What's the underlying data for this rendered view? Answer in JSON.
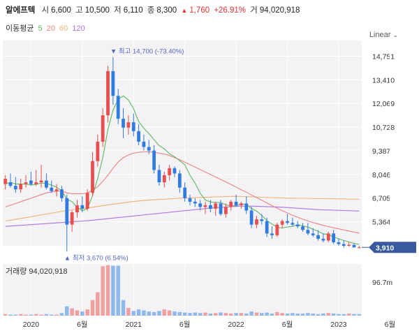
{
  "header": {
    "name": "알에프텍",
    "open_label": "시",
    "open": "6,600",
    "high_label": "고",
    "high": "10,500",
    "low_label": "저",
    "low": "6,110",
    "close_label": "종",
    "close": "8,300",
    "change_arrow": "▲",
    "change": "1,760",
    "change_pct": "+26.91%",
    "volume_label": "거",
    "volume": "94,020,918"
  },
  "ma_legend": {
    "label": "이동평균",
    "items": [
      "5",
      "20",
      "60",
      "120"
    ]
  },
  "scale_label": "Linear",
  "colors": {
    "up": "#e94d4d",
    "down": "#2f7be0",
    "ma5": "#5cb85c",
    "ma20": "#f08080",
    "ma60": "#f0b070",
    "ma120": "#b070e0",
    "vol_up": "#f0a0a0",
    "vol_down": "#8fb8ec",
    "current": "#3a5aa0"
  },
  "chart_data": [
    {
      "type": "candlestick",
      "y_ticks": [
        "14,751",
        "13,410",
        "12,069",
        "10,728",
        "9,387",
        "8,046",
        "6,705",
        "5,364"
      ],
      "ylim": [
        4000,
        15400
      ],
      "x_ticks": [
        "2020",
        "6월",
        "2021",
        "6월",
        "2022",
        "6월",
        "2023",
        "6월"
      ],
      "x_tick_positions": [
        5,
        15,
        25,
        35,
        45,
        55,
        65,
        75
      ],
      "max_annotation": "최고 14,700 (-73.40%)",
      "max_point": {
        "index": 21,
        "value": 14700
      },
      "min_annotation": "최저 3,670 (6.54%)",
      "min_point": {
        "index": 12,
        "value": 3670
      },
      "current_price": "3,910",
      "current_value": 3910,
      "ohlc": [
        [
          7500,
          8000,
          7200,
          7800
        ],
        [
          7600,
          8100,
          7300,
          7400
        ],
        [
          7400,
          7900,
          7000,
          7200
        ],
        [
          7200,
          7800,
          7000,
          7500
        ],
        [
          7500,
          8000,
          7300,
          7600
        ],
        [
          7700,
          8200,
          7400,
          7500
        ],
        [
          7500,
          8300,
          7400,
          7600
        ],
        [
          7600,
          8600,
          7300,
          7700
        ],
        [
          7700,
          8100,
          7200,
          7300
        ],
        [
          7300,
          7700,
          7000,
          7100
        ],
        [
          7100,
          7500,
          6800,
          7200
        ],
        [
          7200,
          7400,
          6500,
          6700
        ],
        [
          6700,
          6900,
          3670,
          5200
        ],
        [
          5200,
          6000,
          4800,
          5900
        ],
        [
          5900,
          6600,
          5600,
          6300
        ],
        [
          6300,
          6800,
          5900,
          6100
        ],
        [
          6100,
          7200,
          6000,
          7000
        ],
        [
          7000,
          9300,
          6800,
          8800
        ],
        [
          8800,
          10300,
          8500,
          9900
        ],
        [
          9900,
          11800,
          9600,
          11400
        ],
        [
          11400,
          14200,
          11000,
          13900
        ],
        [
          13900,
          14700,
          12000,
          12500
        ],
        [
          12500,
          12900,
          10900,
          11200
        ],
        [
          11200,
          11800,
          10100,
          10700
        ],
        [
          10700,
          11400,
          10300,
          11000
        ],
        [
          11000,
          11500,
          10200,
          10500
        ],
        [
          10500,
          10900,
          9700,
          9900
        ],
        [
          9900,
          10300,
          9400,
          9600
        ],
        [
          9600,
          10000,
          9200,
          9400
        ],
        [
          9400,
          9700,
          8100,
          8300
        ],
        [
          8300,
          8600,
          7400,
          7600
        ],
        [
          7600,
          8200,
          7300,
          8000
        ],
        [
          8000,
          8600,
          7700,
          8400
        ],
        [
          8400,
          8500,
          7900,
          8100
        ],
        [
          8100,
          8300,
          7000,
          7300
        ],
        [
          7300,
          7600,
          6500,
          6700
        ],
        [
          6700,
          6900,
          6300,
          6500
        ],
        [
          6500,
          6700,
          6200,
          6400
        ],
        [
          6400,
          6600,
          6000,
          6200
        ],
        [
          6200,
          6500,
          5800,
          6300
        ],
        [
          6300,
          6600,
          5900,
          6100
        ],
        [
          6100,
          6500,
          5700,
          6400
        ],
        [
          6400,
          6600,
          5700,
          5800
        ],
        [
          5800,
          6400,
          5600,
          6200
        ],
        [
          6200,
          6600,
          6000,
          6500
        ],
        [
          6500,
          6900,
          6200,
          6300
        ],
        [
          6300,
          6500,
          6100,
          6400
        ],
        [
          6400,
          6800,
          5800,
          6000
        ],
        [
          6000,
          6200,
          5000,
          5200
        ],
        [
          5200,
          5700,
          5000,
          5500
        ],
        [
          5500,
          5800,
          5200,
          5400
        ],
        [
          5400,
          5600,
          4500,
          4700
        ],
        [
          4700,
          5100,
          4400,
          4600
        ],
        [
          4600,
          5300,
          4500,
          5200
        ],
        [
          5200,
          5500,
          5000,
          5400
        ],
        [
          5400,
          5800,
          5200,
          5300
        ],
        [
          5300,
          5600,
          5100,
          5200
        ],
        [
          5200,
          5400,
          5000,
          5100
        ],
        [
          5100,
          5300,
          4800,
          4900
        ],
        [
          4900,
          5300,
          4600,
          4700
        ],
        [
          4700,
          5000,
          4500,
          4600
        ],
        [
          4600,
          4900,
          4300,
          4400
        ],
        [
          4400,
          4700,
          4200,
          4300
        ],
        [
          4300,
          4800,
          4200,
          4700
        ],
        [
          4700,
          4900,
          4100,
          4200
        ],
        [
          4200,
          4400,
          4000,
          4100
        ],
        [
          4100,
          4300,
          3900,
          4000
        ],
        [
          4000,
          4200,
          3950,
          4050
        ],
        [
          4050,
          4150,
          3900,
          3910
        ],
        [
          3910,
          4000,
          3850,
          3910
        ]
      ],
      "ma5": [
        7500,
        7600,
        7500,
        7500,
        7500,
        7450,
        7480,
        7560,
        7540,
        7440,
        7320,
        7120,
        6640,
        6500,
        6180,
        6000,
        6100,
        6850,
        7800,
        9000,
        10600,
        11700,
        12300,
        12500,
        12260,
        11780,
        11040,
        10660,
        10360,
        10010,
        9680,
        9500,
        9220,
        9050,
        8820,
        8600,
        8000,
        7550,
        6980,
        6600,
        6480,
        6450,
        6460,
        6320,
        6260,
        6280,
        6360,
        6360,
        6120,
        5960,
        5720,
        5430,
        5240,
        5050,
        5010,
        5070,
        5100,
        5200,
        5130,
        5060,
        4940,
        4820,
        4680,
        4640,
        4500,
        4400,
        4300,
        4220,
        4140,
        4080
      ],
      "ma20": [
        6200,
        6300,
        6400,
        6500,
        6600,
        6700,
        6800,
        6900,
        7000,
        7050,
        7100,
        7100,
        7000,
        6950,
        6950,
        6950,
        7000,
        7150,
        7350,
        7650,
        8000,
        8400,
        8750,
        9000,
        9150,
        9250,
        9300,
        9330,
        9330,
        9300,
        9250,
        9200,
        9120,
        9000,
        8880,
        8740,
        8600,
        8460,
        8320,
        8180,
        8040,
        7900,
        7760,
        7620,
        7470,
        7330,
        7180,
        7040,
        6880,
        6730,
        6580,
        6430,
        6280,
        6130,
        5990,
        5860,
        5730,
        5620,
        5510,
        5410,
        5320,
        5240,
        5160,
        5090,
        5020,
        4960,
        4900,
        4840,
        4780,
        4720
      ],
      "ma60": [
        5400,
        5450,
        5500,
        5550,
        5600,
        5650,
        5700,
        5750,
        5800,
        5850,
        5900,
        5950,
        6000,
        6040,
        6080,
        6120,
        6150,
        6190,
        6230,
        6280,
        6320,
        6360,
        6400,
        6440,
        6480,
        6510,
        6540,
        6570,
        6590,
        6610,
        6630,
        6640,
        6660,
        6680,
        6700,
        6710,
        6720,
        6730,
        6740,
        6750,
        6760,
        6770,
        6780,
        6790,
        6800,
        6800,
        6790,
        6780,
        6770,
        6760,
        6750,
        6740,
        6730,
        6720,
        6710,
        6700,
        6700,
        6690,
        6690,
        6690,
        6680,
        6680,
        6680,
        6670,
        6670,
        6660,
        6660,
        6650,
        6650,
        6650
      ],
      "ma120": [
        5100,
        5120,
        5140,
        5160,
        5180,
        5200,
        5220,
        5240,
        5260,
        5280,
        5300,
        5320,
        5340,
        5360,
        5380,
        5400,
        5420,
        5450,
        5480,
        5510,
        5540,
        5570,
        5600,
        5630,
        5660,
        5690,
        5720,
        5750,
        5780,
        5810,
        5840,
        5870,
        5900,
        5930,
        5960,
        5990,
        6020,
        6050,
        6080,
        6110,
        6140,
        6160,
        6180,
        6200,
        6220,
        6240,
        6250,
        6250,
        6250,
        6240,
        6230,
        6220,
        6210,
        6200,
        6190,
        6170,
        6150,
        6130,
        6110,
        6090,
        6070,
        6050,
        6040,
        6030,
        6020,
        6010,
        6000,
        5990,
        5980,
        5970
      ]
    },
    {
      "type": "bar",
      "title": "거래량 94,020,918",
      "y_tick": "96.7m",
      "ymax": 96.7,
      "values": [
        3,
        2,
        2,
        3,
        2,
        2,
        3,
        2,
        3,
        2,
        2,
        5,
        18,
        14,
        10,
        8,
        12,
        30,
        45,
        95,
        97,
        96,
        96,
        30,
        15,
        9,
        12,
        10,
        8,
        7,
        9,
        12,
        10,
        8,
        7,
        6,
        5,
        6,
        5,
        6,
        4,
        5,
        6,
        5,
        4,
        5,
        5,
        4,
        8,
        6,
        5,
        6,
        4,
        7,
        5,
        4,
        5,
        4,
        4,
        5,
        4,
        3,
        4,
        5,
        4,
        3,
        3,
        4,
        3,
        3
      ],
      "up": [
        1,
        0,
        0,
        1,
        1,
        0,
        1,
        1,
        0,
        0,
        1,
        0,
        0,
        1,
        1,
        0,
        1,
        1,
        1,
        1,
        1,
        0,
        0,
        0,
        1,
        0,
        0,
        0,
        0,
        0,
        0,
        1,
        1,
        0,
        0,
        0,
        0,
        0,
        0,
        1,
        0,
        1,
        0,
        1,
        1,
        0,
        1,
        0,
        0,
        1,
        0,
        0,
        0,
        1,
        1,
        0,
        0,
        0,
        0,
        0,
        0,
        0,
        0,
        1,
        0,
        0,
        0,
        1,
        0,
        0
      ]
    }
  ]
}
